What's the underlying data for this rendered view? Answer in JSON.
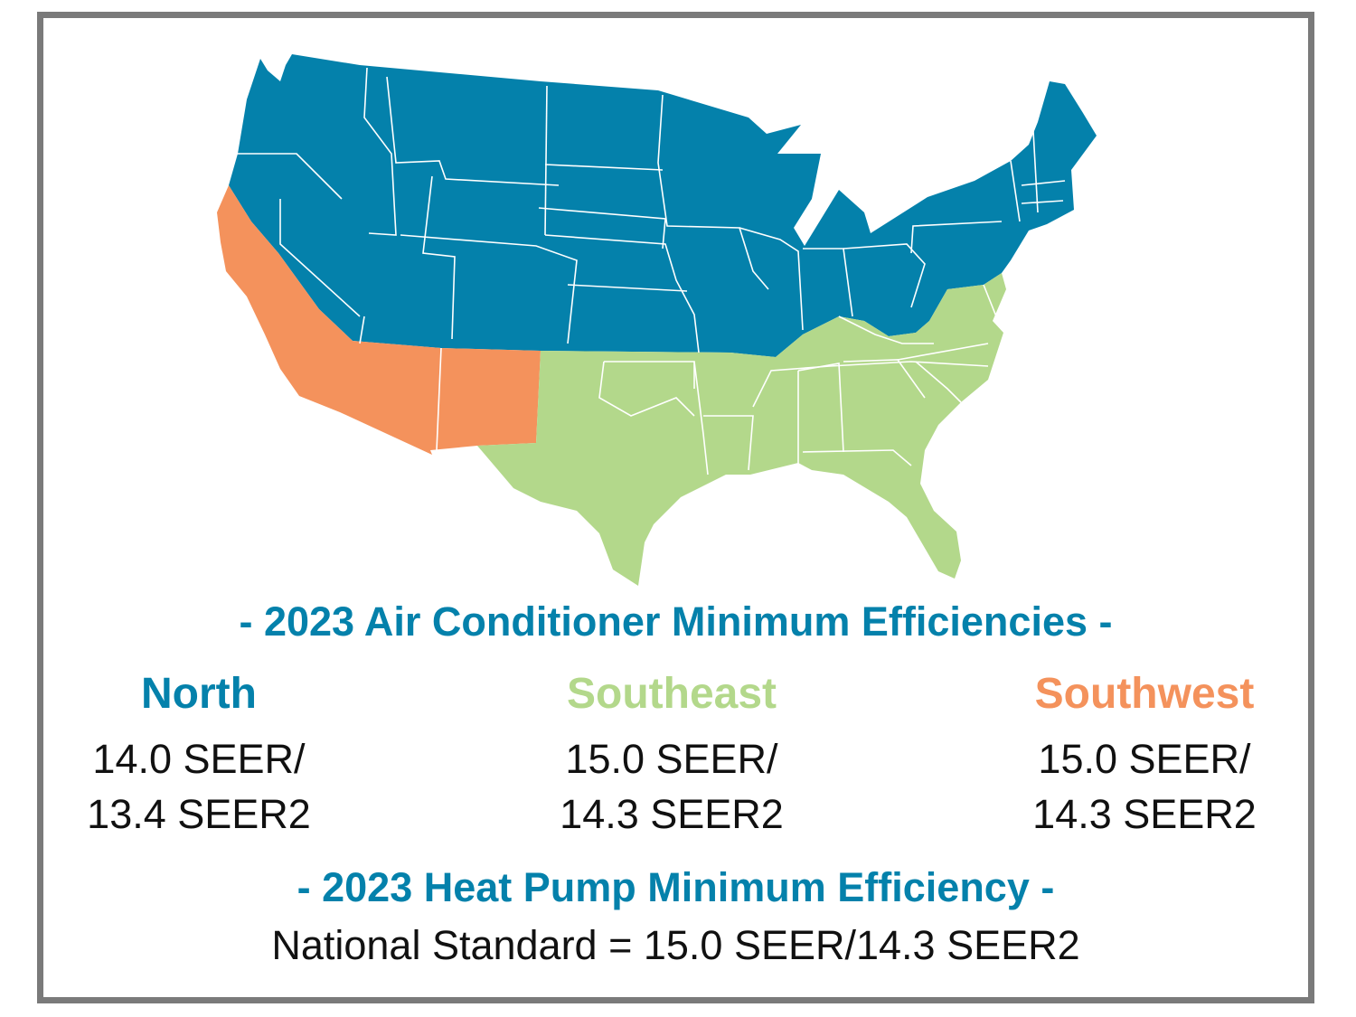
{
  "colors": {
    "north": "#0481ab",
    "southeast": "#b3d88b",
    "southwest": "#f4925c",
    "border_line": "#ffffff",
    "frame": "#7a7a7a",
    "text_dark": "#111111"
  },
  "map": {
    "regions": [
      "north",
      "southeast",
      "southwest"
    ]
  },
  "ac_title": "- 2023 Air Conditioner Minimum Efficiencies -",
  "regions": {
    "north": {
      "name": "North",
      "line1": "14.0 SEER/",
      "line2": "13.4 SEER2"
    },
    "southeast": {
      "name": "Southeast",
      "line1": "15.0 SEER/",
      "line2": "14.3 SEER2"
    },
    "southwest": {
      "name": "Southwest",
      "line1": "15.0 SEER/",
      "line2": "14.3 SEER2"
    }
  },
  "hp_title": "- 2023 Heat Pump Minimum Efficiency -",
  "national_standard": "National Standard = 15.0 SEER/14.3 SEER2"
}
